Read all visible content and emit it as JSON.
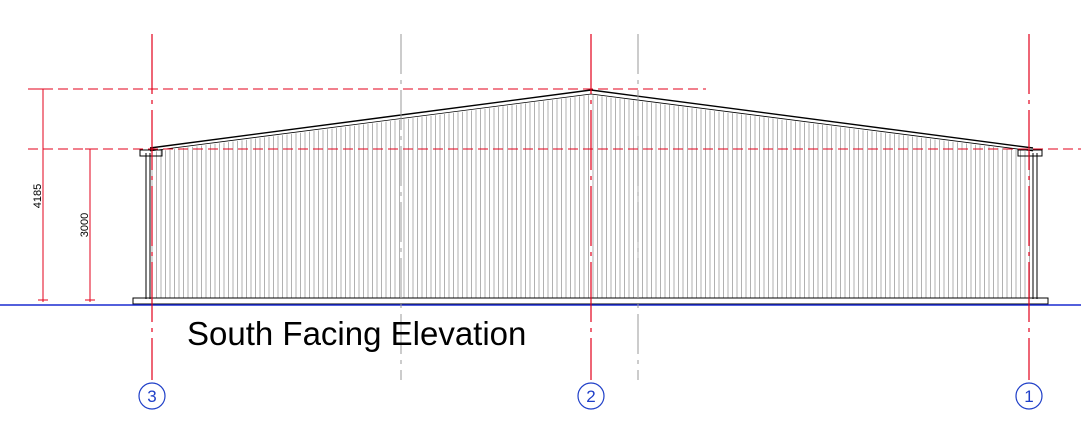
{
  "title": "South Facing Elevation",
  "dimensions": {
    "ridge_height": "4185",
    "eaves_height": "3000"
  },
  "gridlines": [
    "3",
    "2",
    "1"
  ],
  "colors": {
    "gridline": "#e3001b",
    "ground": "#1a2bd0",
    "bubble": "#1f3fc8",
    "cladding": "#7d7d7d",
    "outline": "#000000"
  }
}
